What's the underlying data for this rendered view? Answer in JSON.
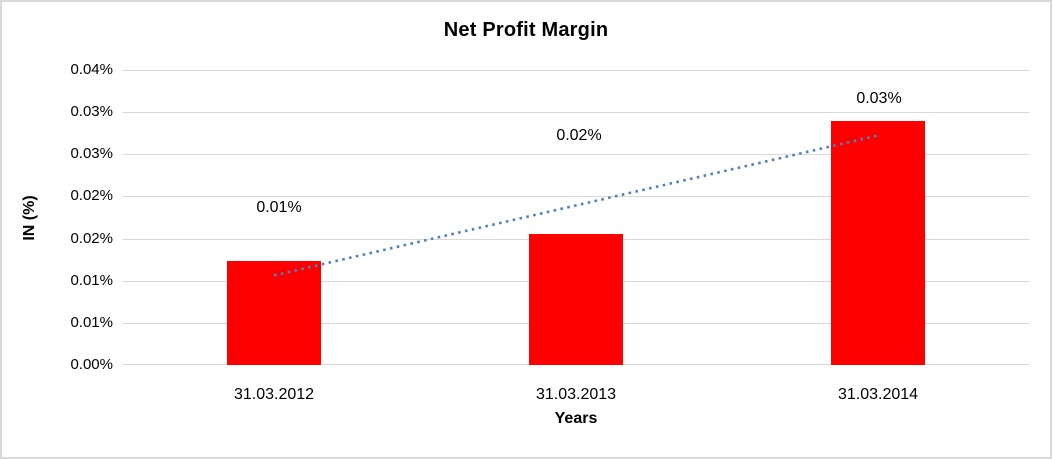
{
  "window": {
    "background": "#FFFFFF",
    "border_color": "#D9D9D9"
  },
  "chart_data": {
    "type": "bar",
    "title": "Net Profit Margin",
    "xlabel": "Years",
    "ylabel": "IN (%)",
    "categories": [
      "31.03.2012",
      "31.03.2013",
      "31.03.2014"
    ],
    "series": [
      {
        "name": "Net Profit Margin",
        "values": [
          0.0123,
          0.0156,
          0.0289
        ],
        "data_labels": [
          "0.01%",
          "0.02%",
          "0.03%"
        ],
        "color": "#FF0000"
      }
    ],
    "units": "percent",
    "ylim": [
      0,
      0.035
    ],
    "y_ticks": [
      {
        "value": 0.035,
        "label": "0.04%"
      },
      {
        "value": 0.03,
        "label": "0.03%"
      },
      {
        "value": 0.025,
        "label": "0.03%"
      },
      {
        "value": 0.02,
        "label": "0.02%"
      },
      {
        "value": 0.015,
        "label": "0.02%"
      },
      {
        "value": 0.01,
        "label": "0.01%"
      },
      {
        "value": 0.005,
        "label": "0.01%"
      },
      {
        "value": 0.0,
        "label": "0.00%"
      }
    ],
    "grid": true,
    "gridline_color": "#D9D9D9",
    "legend": "none",
    "trendline": {
      "type": "linear",
      "style": "dotted",
      "color": "#4F81BD"
    }
  }
}
